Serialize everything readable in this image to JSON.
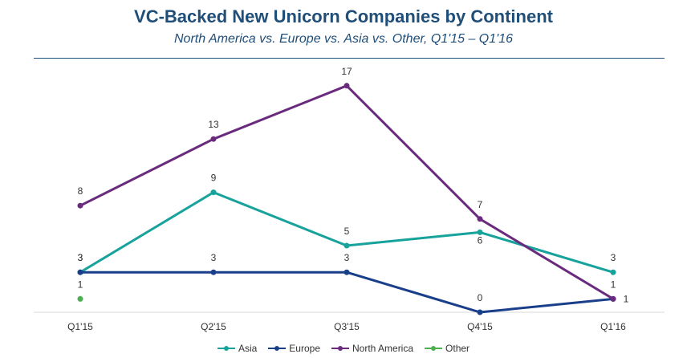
{
  "chart_data": {
    "type": "line",
    "title": "VC-Backed New Unicorn Companies by Continent",
    "subtitle": "North America vs. Europe vs. Asia vs. Other, Q1'15 – Q1'16",
    "categories": [
      "Q1'15",
      "Q2'15",
      "Q3'15",
      "Q4'15",
      "Q1'16"
    ],
    "ylim": [
      0,
      17
    ],
    "xlabel": "",
    "ylabel": "",
    "legend_position": "bottom",
    "series": [
      {
        "name": "Asia",
        "color": "#17a39b",
        "values": [
          3,
          9,
          5,
          6,
          3
        ],
        "labels": [
          "3",
          "9",
          "5",
          "6",
          "3"
        ]
      },
      {
        "name": "Europe",
        "color": "#1a3f8a",
        "values": [
          3,
          3,
          3,
          0,
          1
        ],
        "labels": [
          "3",
          "3",
          "3",
          "0",
          "1"
        ]
      },
      {
        "name": "North America",
        "color": "#6a2a7e",
        "values": [
          8,
          13,
          17,
          7,
          1
        ],
        "labels": [
          "8",
          "13",
          "17",
          "7",
          "1"
        ]
      },
      {
        "name": "Other",
        "color": "#4caf50",
        "values": [
          1,
          null,
          null,
          null,
          null
        ],
        "labels": [
          "1",
          null,
          null,
          null,
          null
        ]
      }
    ]
  }
}
